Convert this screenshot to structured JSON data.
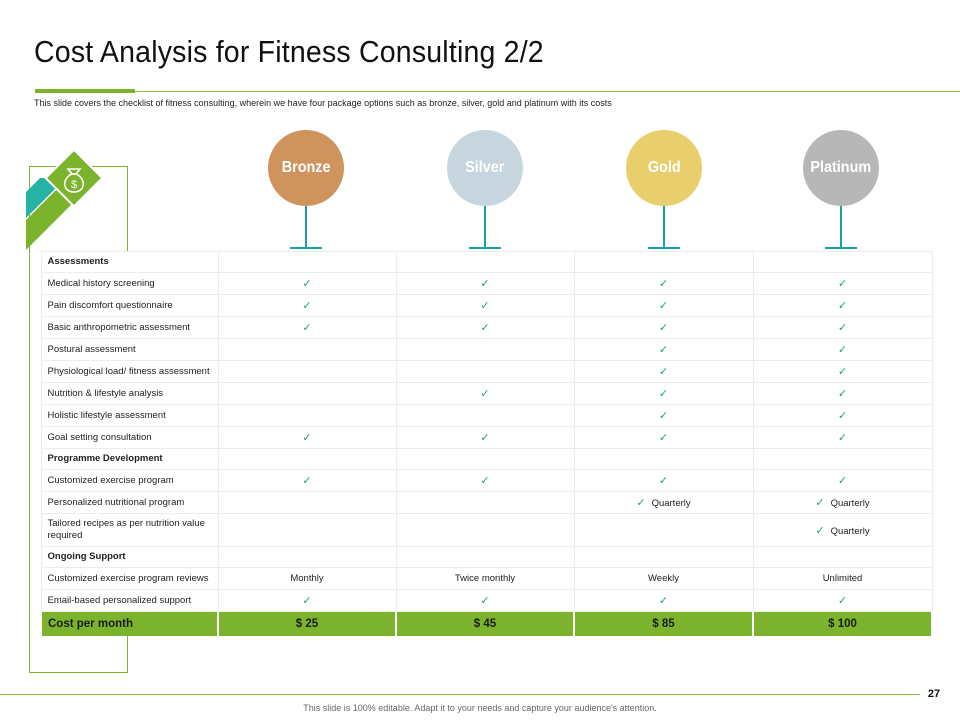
{
  "slide": {
    "title": "Cost Analysis for Fitness Consulting 2/2",
    "subtitle": "This slide covers the checklist of fitness consulting, wherein we have four package options such as bronze, silver, gold and platinum with its costs",
    "page_number": "27",
    "footer": "This slide is 100% editable. Adapt it to your needs and capture your audience's attention."
  },
  "badge": {
    "icon": "money-bag-icon",
    "symbol": "$"
  },
  "packages": [
    {
      "name": "Bronze",
      "color": "#cf945d"
    },
    {
      "name": "Silver",
      "color": "#c7d5de"
    },
    {
      "name": "Gold",
      "color": "#e8ce6c"
    },
    {
      "name": "Platinum",
      "color": "#b7b7b7"
    }
  ],
  "check_icon": "checkmark-icon",
  "check_glyph": "✓",
  "rows": [
    {
      "label": "Assessments",
      "section": true,
      "cells": [
        null,
        null,
        null,
        null
      ]
    },
    {
      "label": "Medical history screening",
      "cells": [
        {
          "check": true
        },
        {
          "check": true
        },
        {
          "check": true
        },
        {
          "check": true
        }
      ]
    },
    {
      "label": "Pain discomfort questionnaire",
      "cells": [
        {
          "check": true
        },
        {
          "check": true
        },
        {
          "check": true
        },
        {
          "check": true
        }
      ]
    },
    {
      "label": "Basic anthropometric assessment",
      "cells": [
        {
          "check": true
        },
        {
          "check": true
        },
        {
          "check": true
        },
        {
          "check": true
        }
      ]
    },
    {
      "label": "Postural assessment",
      "cells": [
        null,
        null,
        {
          "check": true
        },
        {
          "check": true
        }
      ]
    },
    {
      "label": "Physiological load/ fitness assessment",
      "cells": [
        null,
        null,
        {
          "check": true
        },
        {
          "check": true
        }
      ]
    },
    {
      "label": "Nutrition & lifestyle analysis",
      "cells": [
        null,
        {
          "check": true
        },
        {
          "check": true
        },
        {
          "check": true
        }
      ]
    },
    {
      "label": "Holistic lifestyle assessment",
      "cells": [
        null,
        null,
        {
          "check": true
        },
        {
          "check": true
        }
      ]
    },
    {
      "label": "Goal setting consultation",
      "cells": [
        {
          "check": true
        },
        {
          "check": true
        },
        {
          "check": true
        },
        {
          "check": true
        }
      ]
    },
    {
      "label": "Programme Development",
      "section": true,
      "cells": [
        null,
        null,
        null,
        null
      ]
    },
    {
      "label": "Customized exercise program",
      "cells": [
        {
          "check": true
        },
        {
          "check": true
        },
        {
          "check": true
        },
        {
          "check": true
        }
      ]
    },
    {
      "label": "Personalized nutritional program",
      "cells": [
        null,
        null,
        {
          "check": true,
          "text": "Quarterly"
        },
        {
          "check": true,
          "text": "Quarterly"
        }
      ]
    },
    {
      "label": "Tailored recipes as per nutrition value required",
      "tall": true,
      "cells": [
        null,
        null,
        null,
        {
          "check": true,
          "text": "Quarterly"
        }
      ]
    },
    {
      "label": "Ongoing Support",
      "section": true,
      "cells": [
        null,
        null,
        null,
        null
      ]
    },
    {
      "label": "Customized exercise program reviews",
      "cells": [
        {
          "text": "Monthly"
        },
        {
          "text": "Twice monthly"
        },
        {
          "text": "Weekly"
        },
        {
          "text": "Unlimited"
        }
      ]
    },
    {
      "label": "Email-based personalized support",
      "cells": [
        {
          "check": true
        },
        {
          "check": true
        },
        {
          "check": true
        },
        {
          "check": true
        }
      ]
    }
  ],
  "cost_row": {
    "label": "Cost per month",
    "values": [
      "$ 25",
      "$ 45",
      "$ 85",
      "$ 100"
    ]
  }
}
